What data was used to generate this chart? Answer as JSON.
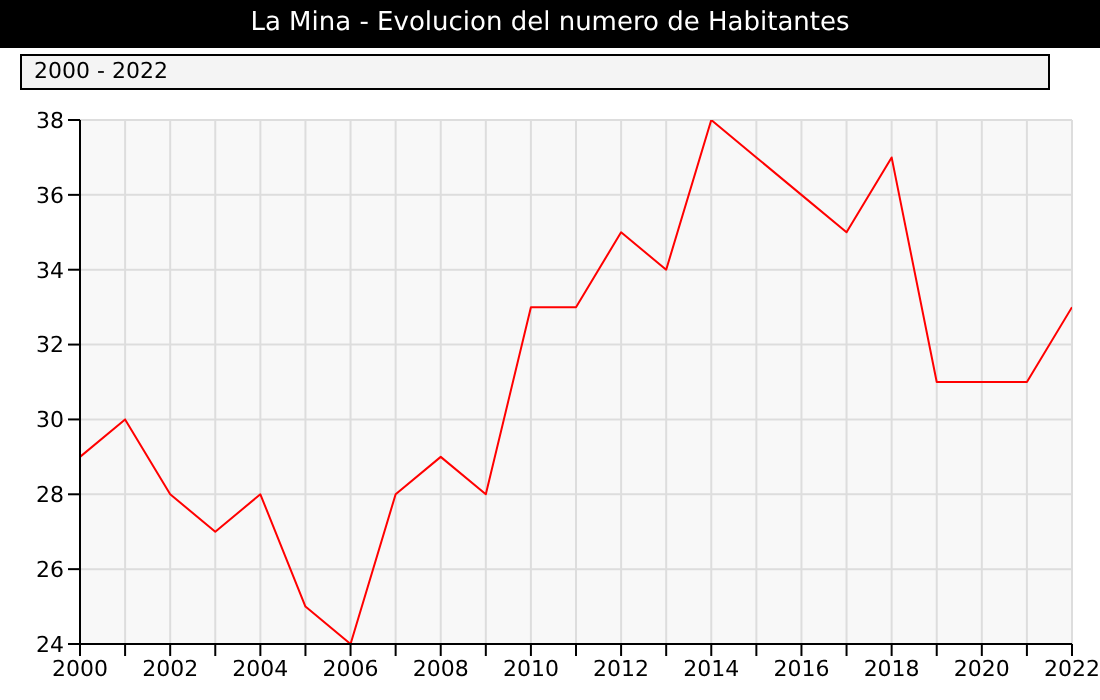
{
  "chart_data": {
    "type": "line",
    "title": "La Mina - Evolucion del numero de Habitantes",
    "subtitle": "2000 - 2022",
    "x": [
      2000,
      2001,
      2002,
      2003,
      2004,
      2005,
      2006,
      2007,
      2008,
      2009,
      2010,
      2011,
      2012,
      2013,
      2014,
      2015,
      2016,
      2017,
      2018,
      2019,
      2020,
      2021,
      2022
    ],
    "series": [
      {
        "color": "#ff0000",
        "values": [
          29,
          30,
          28,
          27,
          28,
          25,
          24,
          28,
          29,
          28,
          33,
          33,
          35,
          34,
          38,
          37,
          36,
          35,
          37,
          31,
          31,
          31,
          33
        ]
      }
    ],
    "xlim": [
      2000,
      2022
    ],
    "xticks": [
      2000,
      {
        "value": 2001,
        "label": null
      },
      2002,
      {
        "value": 2003,
        "label": null
      },
      2004,
      {
        "value": 2005,
        "label": null
      },
      2006,
      {
        "value": 2007,
        "label": null
      },
      2008,
      {
        "value": 2009,
        "label": null
      },
      2010,
      {
        "value": 2011,
        "label": null
      },
      2012,
      {
        "value": 2013,
        "label": null
      },
      2014,
      {
        "value": 2015,
        "label": null
      },
      2016,
      {
        "value": 2017,
        "label": null
      },
      2018,
      {
        "value": 2019,
        "label": null
      },
      2020,
      {
        "value": 2021,
        "label": null
      },
      2022
    ],
    "ylim": [
      24,
      38
    ],
    "yticks": [
      24,
      26,
      28,
      30,
      32,
      34,
      36,
      38
    ],
    "grid": true,
    "marker": "none",
    "line_style": "solid",
    "legend": false
  }
}
